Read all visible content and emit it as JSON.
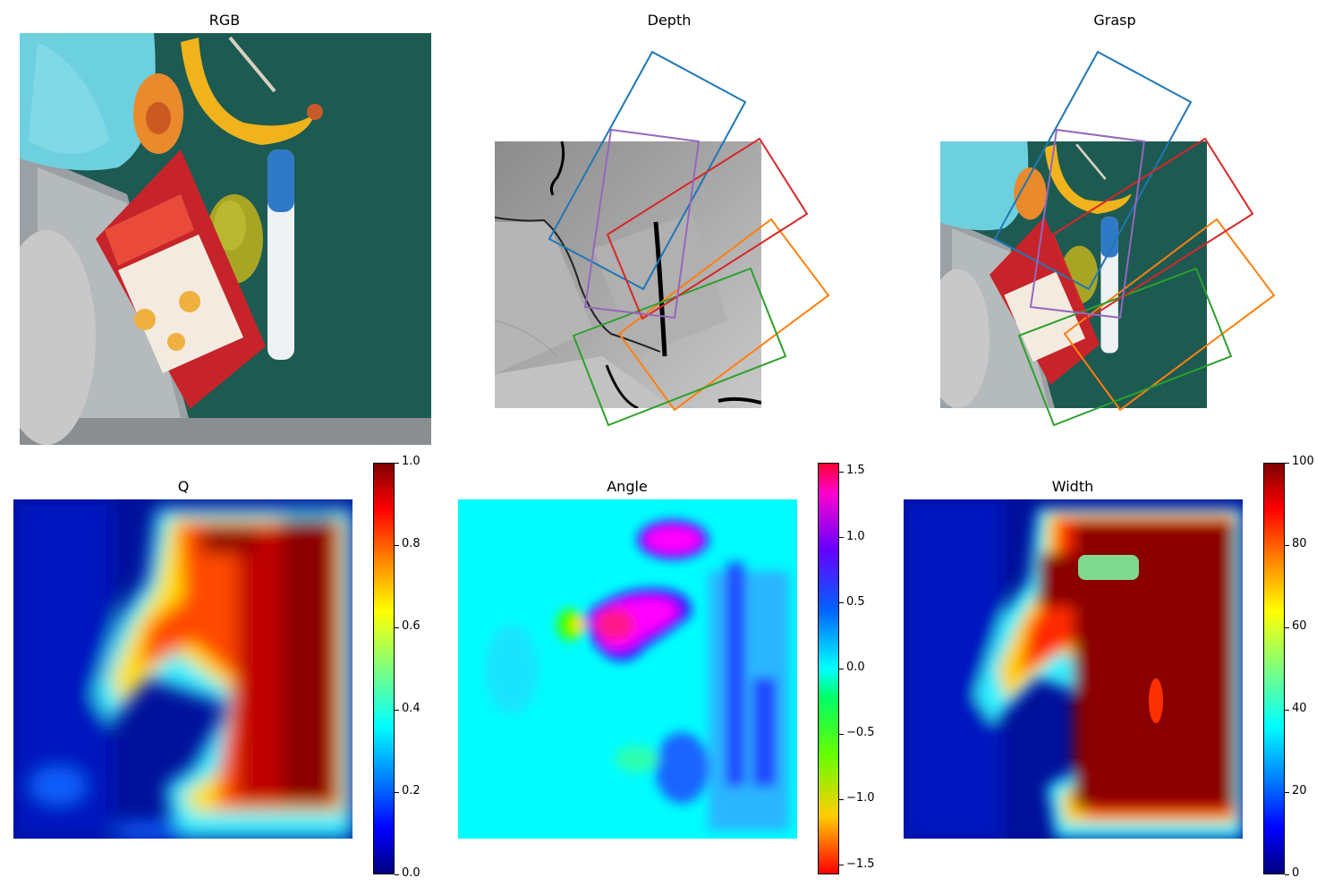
{
  "figure": {
    "titles": {
      "rgb": "RGB",
      "depth": "Depth",
      "grasp": "Grasp",
      "q": "Q",
      "angle": "Angle",
      "width": "Width"
    }
  },
  "chart_data": [
    {
      "type": "heatmap",
      "title": "Q",
      "colormap": "jet",
      "colorbar_range": [
        0.0,
        1.0
      ],
      "colorbar_ticks": [
        "0.0",
        "0.2",
        "0.4",
        "0.6",
        "0.8",
        "1.0"
      ]
    },
    {
      "type": "heatmap",
      "title": "Angle",
      "colormap": "hsv",
      "colorbar_range": [
        -1.5708,
        1.5708
      ],
      "colorbar_ticks": [
        "−1.5",
        "−1.0",
        "−0.5",
        "0.0",
        "0.5",
        "1.0",
        "1.5"
      ]
    },
    {
      "type": "heatmap",
      "title": "Width",
      "colormap": "jet",
      "colorbar_range": [
        0,
        100
      ],
      "colorbar_ticks": [
        "0",
        "20",
        "40",
        "60",
        "80",
        "100"
      ]
    }
  ],
  "grasp_colors": [
    "#1f77b4",
    "#ff7f0e",
    "#2ca02c",
    "#d62728",
    "#9467bd"
  ]
}
